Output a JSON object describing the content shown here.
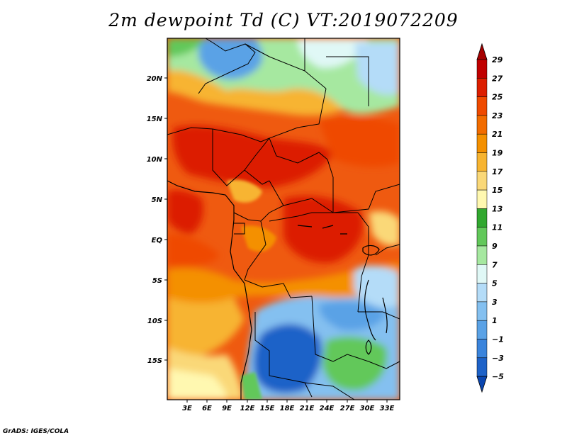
{
  "title": "2m dewpoint Td (C) VT:2019072209",
  "credit": "GrADS: IGES/COLA",
  "map": {
    "lat_labels": [
      "20N",
      "15N",
      "10N",
      "5N",
      "EQ",
      "5S",
      "10S",
      "15S"
    ],
    "lon_labels": [
      "3E",
      "6E",
      "9E",
      "12E",
      "15E",
      "18E",
      "21E",
      "24E",
      "27E",
      "30E",
      "33E"
    ]
  },
  "colorbar": {
    "labels": [
      "29",
      "27",
      "25",
      "23",
      "21",
      "19",
      "17",
      "15",
      "13",
      "11",
      "9",
      "7",
      "5",
      "3",
      "1",
      "−1",
      "−3",
      "−5"
    ],
    "colors": [
      "#a50000",
      "#c00000",
      "#dc1e00",
      "#ef4a00",
      "#f26c00",
      "#f49000",
      "#f7b430",
      "#fad878",
      "#fff8b0",
      "#31a82f",
      "#62c85a",
      "#a6e8a0",
      "#e0f8f6",
      "#b4dcf8",
      "#84c0f0",
      "#5aa2e6",
      "#3a84dc",
      "#1d62c8",
      "#0a46b0"
    ]
  }
}
